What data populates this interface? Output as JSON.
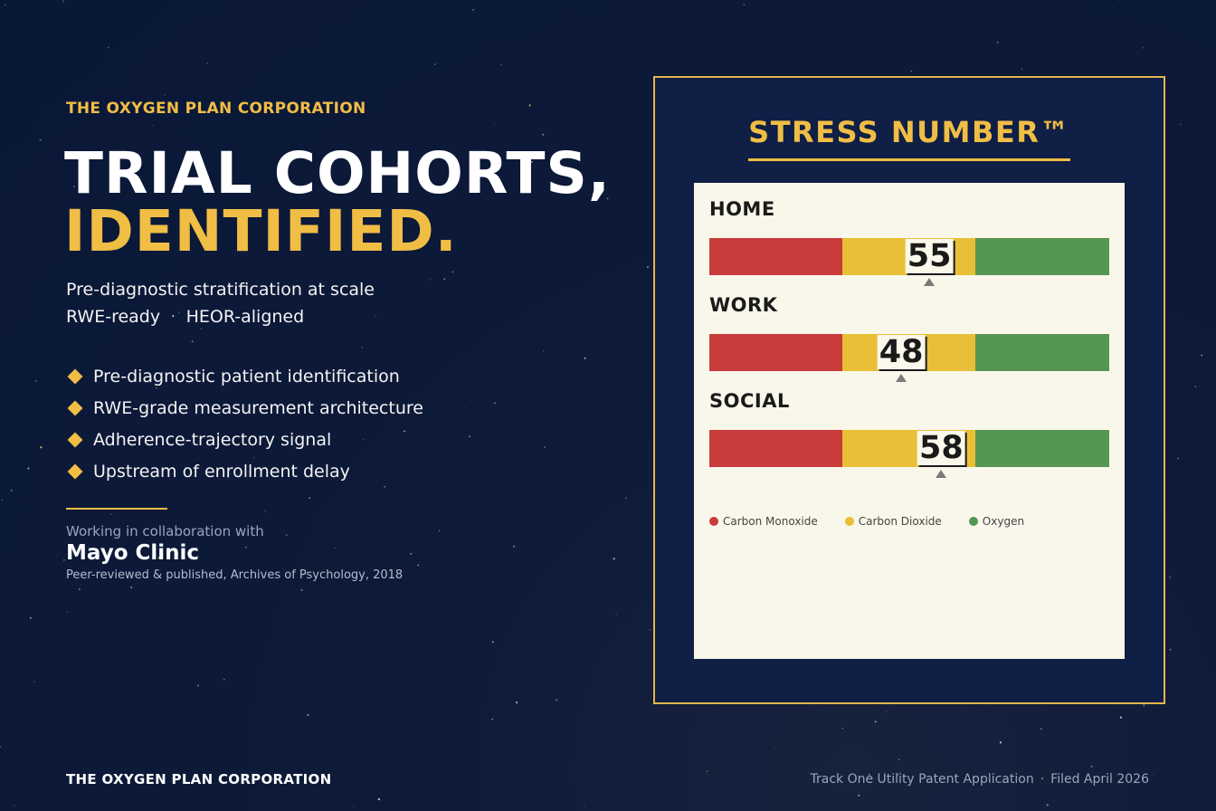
{
  "header": {
    "company": "THE OXYGEN PLAN CORPORATION",
    "headline_line1": "TRIAL COHORTS,",
    "headline_line2": "IDENTIFIED.",
    "subtitle": "Pre-diagnostic stratification at scale",
    "tag1": "RWE-ready",
    "tag_separator": "·",
    "tag2": "HEOR-aligned"
  },
  "bullets": [
    "Pre-diagnostic patient identification",
    "RWE-grade measurement architecture",
    "Adherence-trajectory signal",
    "Upstream of enrollment delay"
  ],
  "collaboration": {
    "intro": "Working in collaboration with",
    "partner": "Mayo Clinic",
    "publication": "Peer-reviewed & published, Archives of Psychology, 2018"
  },
  "panel": {
    "title": "STRESS NUMBER™",
    "scale_min": 0,
    "scale_max": 100,
    "gauges": [
      {
        "label": "HOME",
        "value": 55
      },
      {
        "label": "WORK",
        "value": 48
      },
      {
        "label": "SOCIAL",
        "value": 58
      }
    ],
    "zones": [
      {
        "name": "Carbon Monoxide",
        "color": "#c83c3c"
      },
      {
        "name": "Carbon Dioxide",
        "color": "#e8bf36"
      },
      {
        "name": "Oxygen",
        "color": "#559750"
      }
    ]
  },
  "footer": {
    "company": "THE OXYGEN PLAN CORPORATION",
    "patent": "Track One Utility Patent Application",
    "separator": "·",
    "filed": "Filed April 2026"
  },
  "colors": {
    "background": "#0a1838",
    "accent": "#f0bd45",
    "panel_bg": "#f9f7ea"
  }
}
